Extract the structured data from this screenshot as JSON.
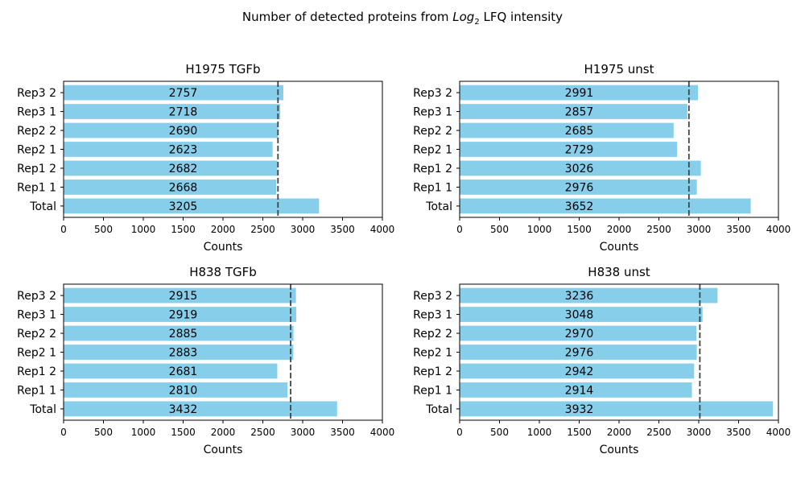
{
  "figure": {
    "suptitle_prefix": "Number of detected proteins from ",
    "suptitle_math": "Log",
    "suptitle_sub": "2",
    "suptitle_suffix": " LFQ intensity"
  },
  "colors": {
    "bar": "#87ceeb",
    "mean_line": "#444444",
    "axis": "#000000"
  },
  "chart_data": [
    {
      "type": "bar",
      "orientation": "horizontal",
      "title": "H1975  TGFb",
      "xlabel": "Counts",
      "ylabel": "",
      "xlim": [
        0,
        4000
      ],
      "xticks": [
        0,
        500,
        1000,
        1500,
        2000,
        2500,
        3000,
        3500,
        4000
      ],
      "categories": [
        "Total",
        "Rep1 1",
        "Rep1 2",
        "Rep2 1",
        "Rep2 2",
        "Rep3 1",
        "Rep3 2"
      ],
      "values": [
        3205,
        2668,
        2682,
        2623,
        2690,
        2718,
        2757
      ],
      "mean_line": 2690
    },
    {
      "type": "bar",
      "orientation": "horizontal",
      "title": "H1975  unst",
      "xlabel": "Counts",
      "ylabel": "",
      "xlim": [
        0,
        4000
      ],
      "xticks": [
        0,
        500,
        1000,
        1500,
        2000,
        2500,
        3000,
        3500,
        4000
      ],
      "categories": [
        "Total",
        "Rep1 1",
        "Rep1 2",
        "Rep2 1",
        "Rep2 2",
        "Rep3 1",
        "Rep3 2"
      ],
      "values": [
        3652,
        2976,
        3026,
        2729,
        2685,
        2857,
        2991
      ],
      "mean_line": 2877
    },
    {
      "type": "bar",
      "orientation": "horizontal",
      "title": "H838  TGFb",
      "xlabel": "Counts",
      "ylabel": "",
      "xlim": [
        0,
        4000
      ],
      "xticks": [
        0,
        500,
        1000,
        1500,
        2000,
        2500,
        3000,
        3500,
        4000
      ],
      "categories": [
        "Total",
        "Rep1 1",
        "Rep1 2",
        "Rep2 1",
        "Rep2 2",
        "Rep3 1",
        "Rep3 2"
      ],
      "values": [
        3432,
        2810,
        2681,
        2883,
        2885,
        2919,
        2915
      ],
      "mean_line": 2849
    },
    {
      "type": "bar",
      "orientation": "horizontal",
      "title": "H838  unst",
      "xlabel": "Counts",
      "ylabel": "",
      "xlim": [
        0,
        4000
      ],
      "xticks": [
        0,
        500,
        1000,
        1500,
        2000,
        2500,
        3000,
        3500,
        4000
      ],
      "categories": [
        "Total",
        "Rep1 1",
        "Rep1 2",
        "Rep2 1",
        "Rep2 2",
        "Rep3 1",
        "Rep3 2"
      ],
      "values": [
        3932,
        2914,
        2942,
        2976,
        2970,
        3048,
        3236
      ],
      "mean_line": 3014
    }
  ]
}
